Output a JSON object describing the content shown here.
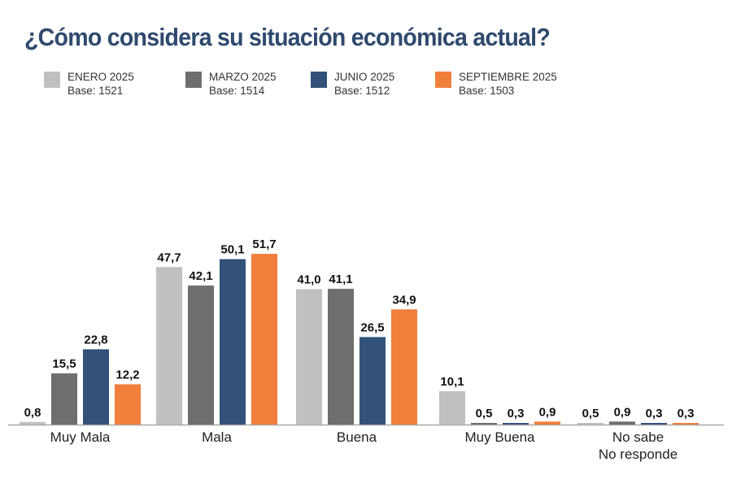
{
  "chart_data": {
    "type": "bar",
    "title": "¿Cómo considera su situación económica actual?",
    "xlabel": "",
    "ylabel": "",
    "ylim": [
      0,
      55
    ],
    "grid": false,
    "legend_position": "top-left",
    "categories": [
      "Muy Mala",
      "Mala",
      "Buena",
      "Muy Buena",
      "No sabe\nNo responde"
    ],
    "series": [
      {
        "name": "ENERO 2025",
        "base": "Base: 1521",
        "color": "#c0c0c0",
        "values": [
          0.8,
          47.7,
          41.0,
          10.1,
          0.5
        ],
        "labels": [
          "0,8",
          "47,7",
          "41,0",
          "10,1",
          "0,5"
        ]
      },
      {
        "name": "MARZO 2025",
        "base": "Base: 1514",
        "color": "#6e6e6e",
        "values": [
          15.5,
          42.1,
          41.1,
          0.5,
          0.9
        ],
        "labels": [
          "15,5",
          "42,1",
          "41,1",
          "0,5",
          "0,9"
        ]
      },
      {
        "name": "JUNIO 2025",
        "base": "Base: 1512",
        "color": "#33527a",
        "values": [
          22.8,
          50.1,
          26.5,
          0.3,
          0.3
        ],
        "labels": [
          "22,8",
          "50,1",
          "26,5",
          "0,3",
          "0,3"
        ]
      },
      {
        "name": "SEPTIEMBRE 2025",
        "base": "Base: 1503",
        "color": "#f07f3c",
        "values": [
          12.2,
          51.7,
          34.9,
          0.9,
          0.3
        ],
        "labels": [
          "12,2",
          "51,7",
          "34,9",
          "0,9",
          "0,3"
        ]
      }
    ]
  },
  "colors": {
    "title": "#2f4a6e",
    "axis": "#a8a8a8"
  }
}
